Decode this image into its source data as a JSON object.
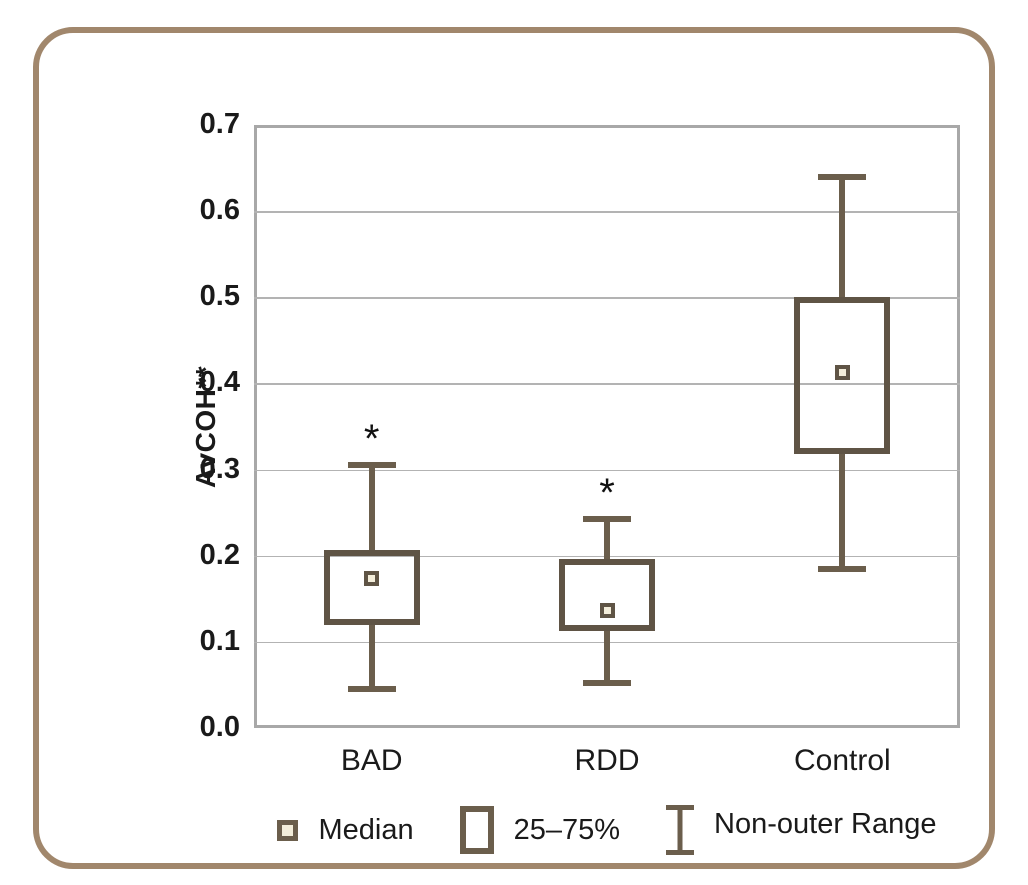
{
  "chart_data": {
    "type": "boxplot",
    "title": "",
    "xlabel": "",
    "ylabel": "AvCOH**",
    "ylim": [
      0.0,
      0.7
    ],
    "ytick_step": 0.1,
    "ytick_labels": [
      "0.0",
      "0.1",
      "0.2",
      "0.3",
      "0.4",
      "0.5",
      "0.6",
      "0.7"
    ],
    "categories": [
      "BAD",
      "RDD",
      "Control"
    ],
    "groups": [
      {
        "label": "BAD",
        "median": 0.173,
        "q1": 0.119,
        "q3": 0.207,
        "whisker_low": 0.045,
        "whisker_high": 0.305,
        "annotation": "*"
      },
      {
        "label": "RDD",
        "median": 0.136,
        "q1": 0.113,
        "q3": 0.196,
        "whisker_low": 0.052,
        "whisker_high": 0.243,
        "annotation": "*"
      },
      {
        "label": "Control",
        "median": 0.413,
        "q1": 0.318,
        "q3": 0.5,
        "whisker_low": 0.185,
        "whisker_high": 0.64,
        "annotation": ""
      }
    ],
    "legend": [
      {
        "icon": "median-marker-icon",
        "label": "Median"
      },
      {
        "icon": "iqr-box-icon",
        "label": "25–75%"
      },
      {
        "icon": "whisker-range-icon",
        "label": "Non-outer Range"
      }
    ],
    "legend_position": "bottom",
    "grid": "horizontal",
    "colors": {
      "box": "#5f5445",
      "whisker": "#6b5e4c",
      "median_fill": "#f3edda",
      "frame": "#a1876c",
      "grid": "#b3b3b3",
      "plot_border": "#a8a8a8",
      "text": "#1a1a1a",
      "annotation": "#111111"
    }
  }
}
